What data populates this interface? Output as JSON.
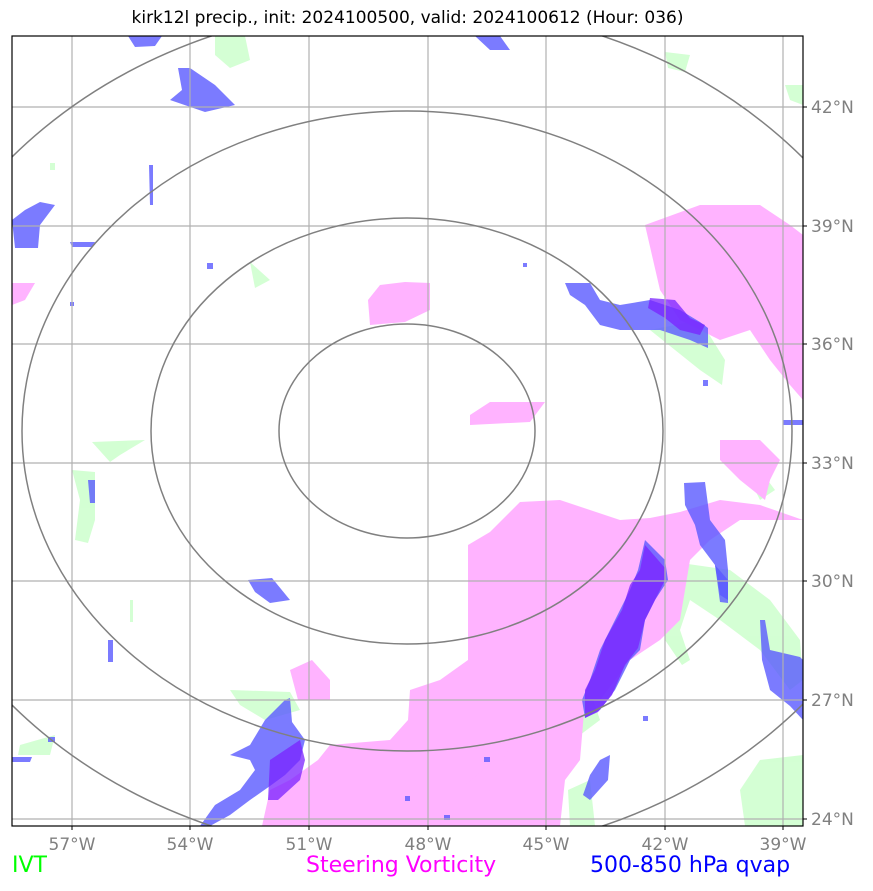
{
  "title": "kirk12l precip., init: 2024100500, valid: 2024100612 (Hour: 036)",
  "map": {
    "lon_ticks": [
      "57°W",
      "54°W",
      "51°W",
      "48°W",
      "45°W",
      "42°W",
      "39°W"
    ],
    "lat_ticks": [
      "42°N",
      "39°N",
      "36°N",
      "33°N",
      "30°N",
      "27°N",
      "24°N"
    ],
    "extent": {
      "lon_min": -58.5,
      "lon_max": -38.5,
      "lat_min": 24.0,
      "lat_max": 43.8
    },
    "range_rings": 4,
    "colors": {
      "ivt": "#ccffcc",
      "vorticity": "#ffb3ff",
      "qvap": "#5a5aff",
      "qvap_overlap": "#7a22ff",
      "grid": "#b0b0b0",
      "ring": "#808080"
    }
  },
  "legend": {
    "ivt": "IVT",
    "vorticity": "Steering Vorticity",
    "qvap": "500-850 hPa qvap"
  }
}
